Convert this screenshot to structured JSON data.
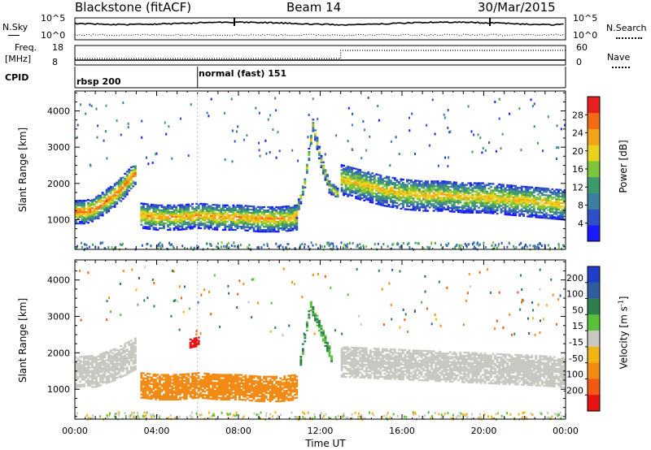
{
  "header": {
    "station": "Blackstone (fitACF)",
    "beam": "Beam 14",
    "date": "30/Mar/2015"
  },
  "meta_panels": {
    "nsky_label": "N.Sky",
    "nsky_ticks": [
      "10^5",
      "10^0"
    ],
    "nsearch_label": "N.Search",
    "nsearch_ticks": [
      "10^5",
      "10^0"
    ],
    "freq_label": "Freq.",
    "freq_unit": "[MHz]",
    "freq_ticks": [
      "18",
      "8"
    ],
    "nave_label": "Nave",
    "nave_ticks": [
      "60",
      "0"
    ],
    "cpid_label": "CPID",
    "cpid_segments": [
      {
        "label": "rbsp 200",
        "start_hour": 0
      },
      {
        "label": "normal (fast) 151",
        "start_hour": 6
      }
    ]
  },
  "colors": {
    "power": [
      "#1a1aff",
      "#2e4fc8",
      "#3d7f9e",
      "#3f9a6b",
      "#7dc43a",
      "#e8d21e",
      "#f2a41a",
      "#f26b14",
      "#e82020"
    ],
    "velocity": [
      "#1f3fc8",
      "#2e5ea0",
      "#2e7e4e",
      "#5abf3a",
      "#c8c8c0",
      "#f2b414",
      "#f28a14",
      "#f25a14",
      "#e81414"
    ]
  },
  "chart_data": [
    {
      "type": "heatmap",
      "quantity": "power",
      "ylabel": "Slant Range [km]",
      "yticks": [
        1000,
        2000,
        3000,
        4000
      ],
      "ylim": [
        180,
        4550
      ],
      "xlim": [
        0,
        24
      ],
      "colorbar_label": "Power [dB]",
      "colorbar_ticks": [
        "4",
        "8",
        "12",
        "16",
        "20",
        "24",
        "28"
      ],
      "colorbar_range": [
        0,
        32
      ],
      "structures": [
        {
          "name": "main-band-1",
          "hours": [
            0,
            0.5,
            1,
            1.5,
            2,
            2.5,
            3
          ],
          "range_km": [
            1200,
            1200,
            1300,
            1500,
            1700,
            2000,
            2300
          ],
          "width_km": 650,
          "peak_db": 27
        },
        {
          "name": "main-band-2",
          "hours": [
            3.2,
            4,
            5,
            6,
            7,
            8,
            9,
            10,
            10.8
          ],
          "range_km": [
            1100,
            1050,
            1050,
            1100,
            1050,
            1050,
            1000,
            1000,
            1050
          ],
          "width_km": 700,
          "peak_db": 24
        },
        {
          "name": "spike",
          "hours": [
            10.8,
            11.2,
            11.6,
            12,
            12.4,
            12.8
          ],
          "range_km": [
            1200,
            2000,
            3600,
            2600,
            1900,
            1700
          ],
          "width_km": 350,
          "peak_db": 20
        },
        {
          "name": "upper-band",
          "hours": [
            13,
            14,
            15,
            16,
            17,
            18,
            19,
            20,
            21,
            22,
            23,
            24
          ],
          "range_km": [
            2100,
            1950,
            1800,
            1700,
            1650,
            1650,
            1600,
            1600,
            1550,
            1500,
            1450,
            1400
          ],
          "width_km": 850,
          "peak_db": 22
        }
      ]
    },
    {
      "type": "heatmap",
      "quantity": "velocity",
      "ylabel": "Slant Range [km]",
      "yticks": [
        1000,
        2000,
        3000,
        4000
      ],
      "ylim": [
        180,
        4550
      ],
      "xlim": [
        0,
        24
      ],
      "xlabel": "Time UT",
      "xticks": [
        "00:00",
        "04:00",
        "08:00",
        "12:00",
        "16:00",
        "20:00",
        "00:00"
      ],
      "colorbar_label": "Velocity [m s^-1]",
      "colorbar_ticks": [
        "-200",
        "-100",
        "-50",
        "-15",
        "15",
        "50",
        "100",
        "200"
      ],
      "structures": [
        {
          "name": "grey-early",
          "hours": [
            0,
            1,
            2,
            3
          ],
          "range_km": [
            1450,
            1500,
            1700,
            2000
          ],
          "width_km": 900,
          "velocity": 0
        },
        {
          "name": "orange-main",
          "hours": [
            3.2,
            4,
            5,
            6,
            7,
            8,
            9,
            10,
            10.8
          ],
          "range_km": [
            1100,
            1050,
            1050,
            1100,
            1050,
            1050,
            1000,
            1000,
            1050
          ],
          "width_km": 700,
          "velocity": -55
        },
        {
          "name": "red-patch",
          "hours": [
            5.6,
            6
          ],
          "range_km": [
            2250,
            2300
          ],
          "width_km": 250,
          "velocity": -210
        },
        {
          "name": "green-spike",
          "hours": [
            11,
            11.5,
            12,
            12.5
          ],
          "range_km": [
            1800,
            3300,
            2600,
            1900
          ],
          "width_km": 300,
          "velocity": 30
        },
        {
          "name": "grey-late",
          "hours": [
            13,
            15,
            17,
            19,
            21,
            23,
            24
          ],
          "range_km": [
            1750,
            1700,
            1650,
            1600,
            1550,
            1500,
            1450
          ],
          "width_km": 850,
          "velocity": 0
        }
      ]
    }
  ]
}
